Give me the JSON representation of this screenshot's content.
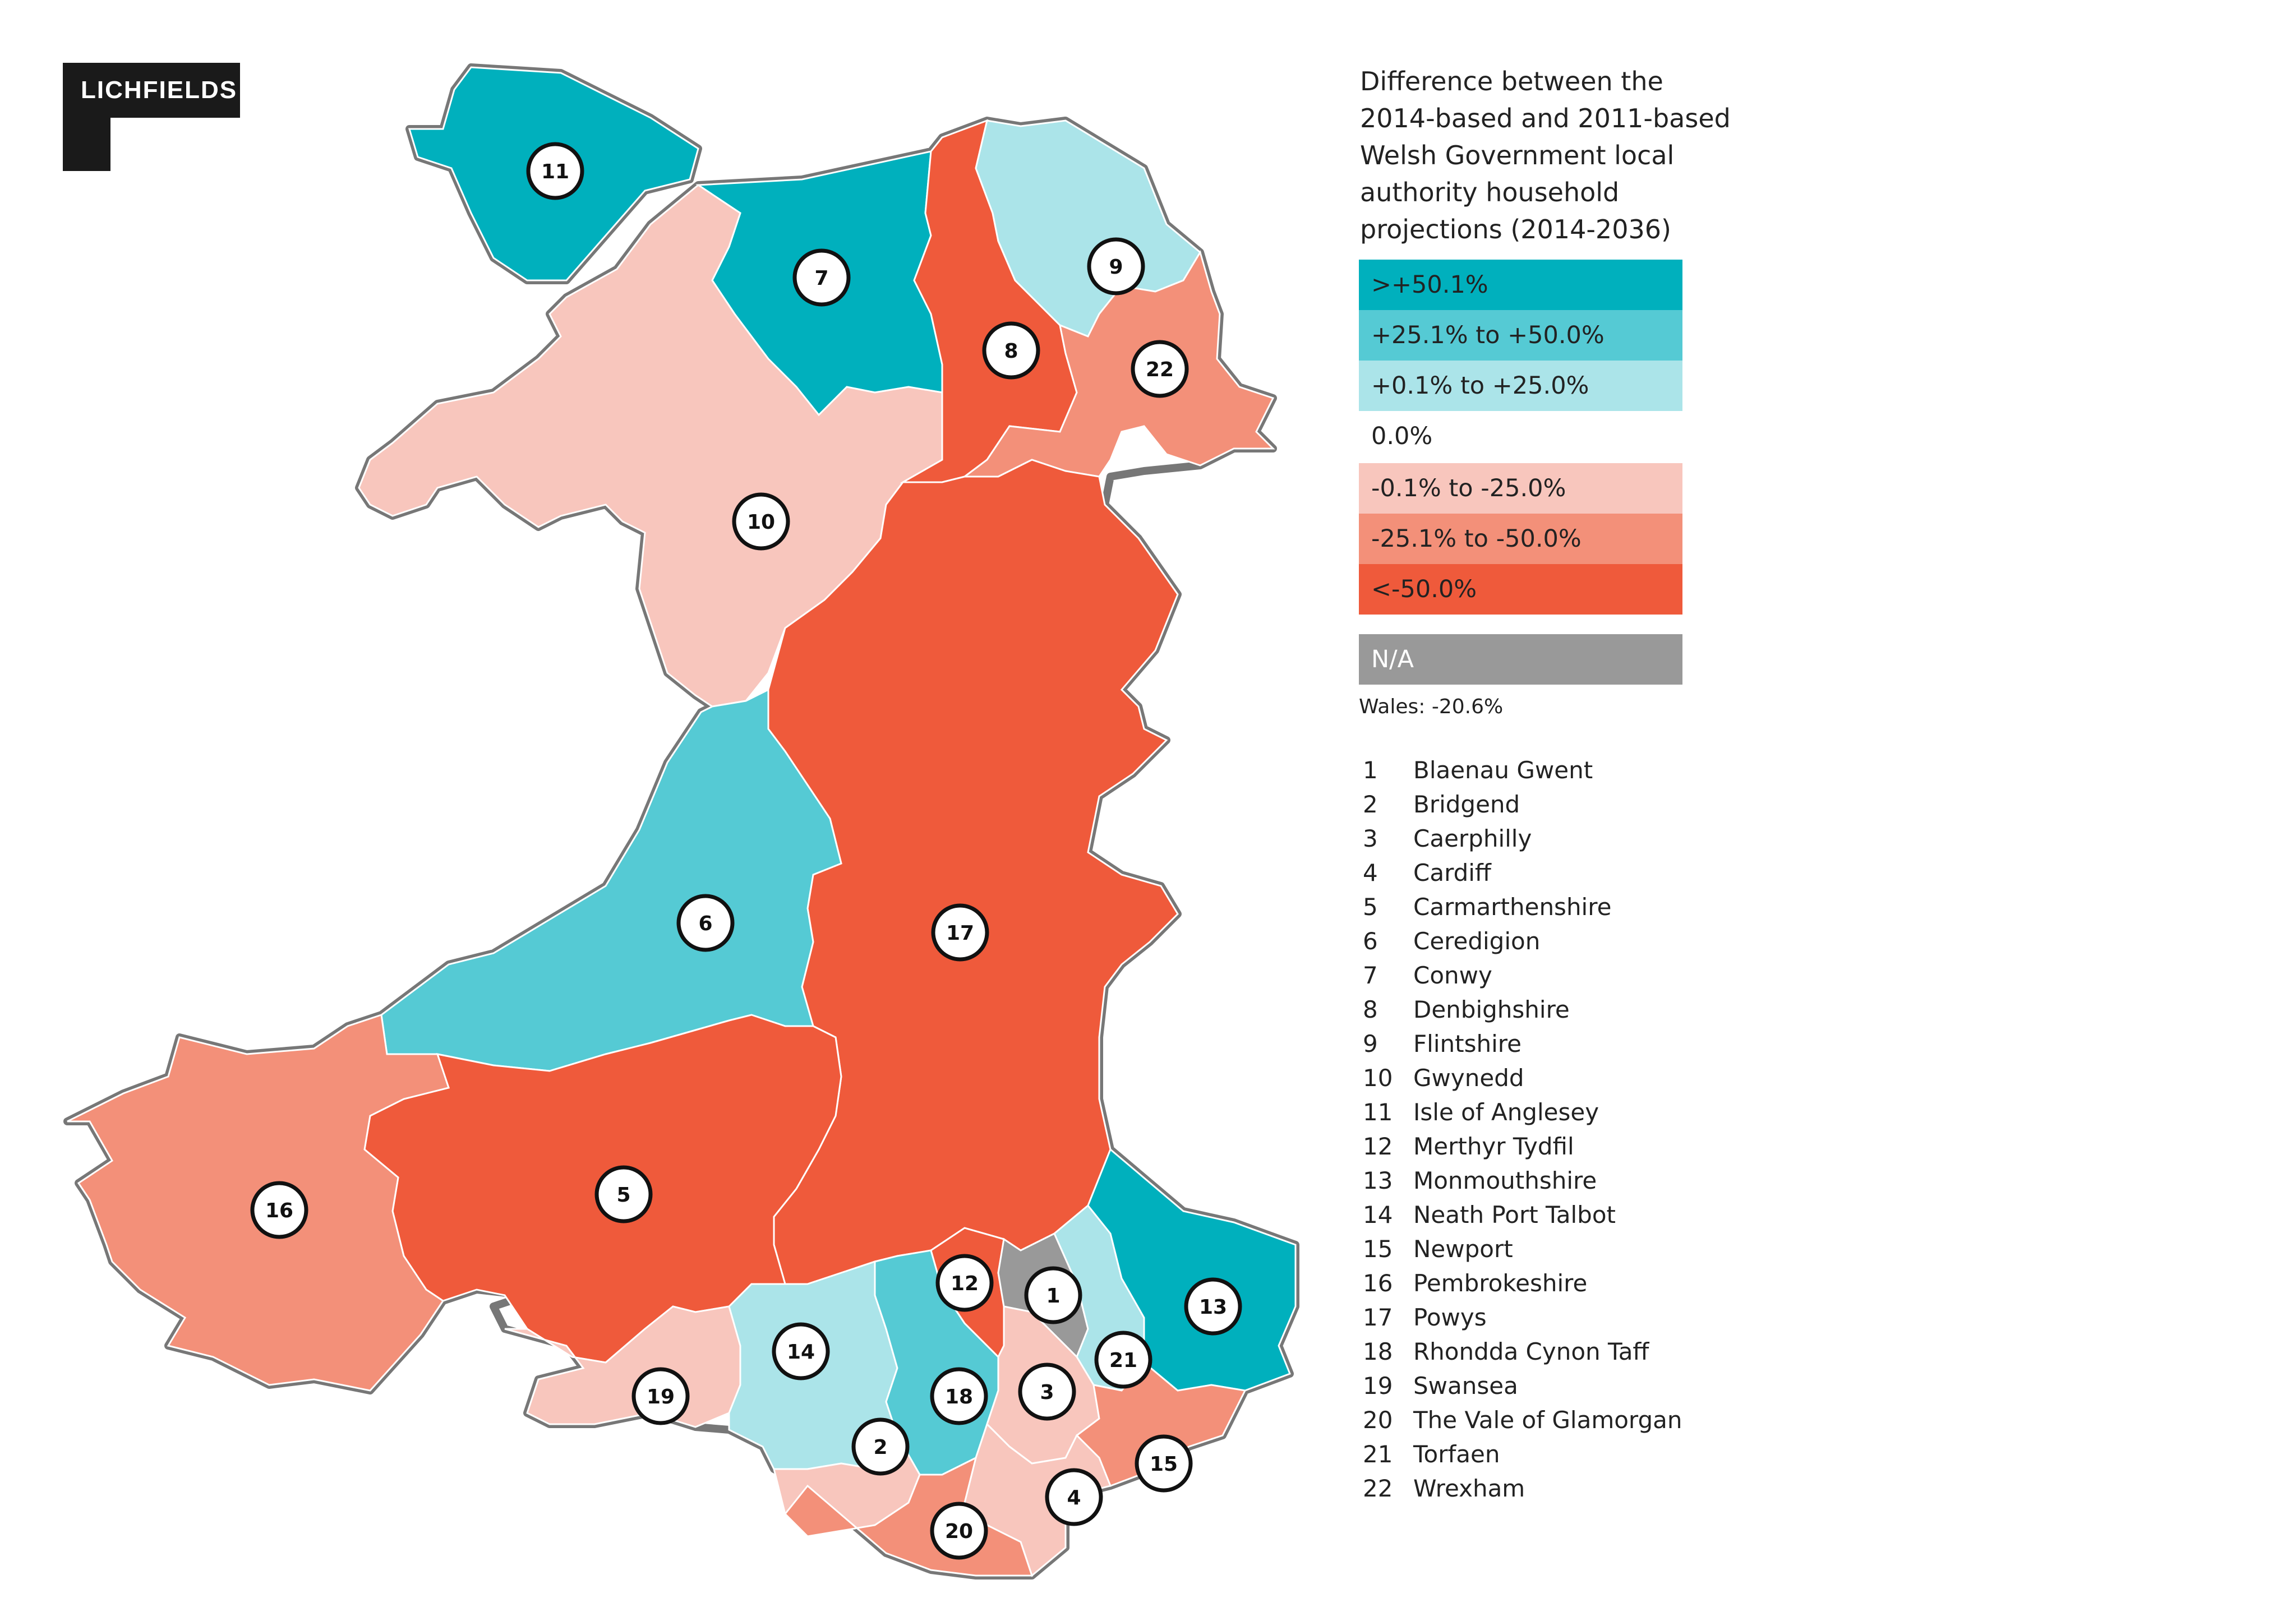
{
  "logo": {
    "text": "LICHFIELDS"
  },
  "legend": {
    "title_lines": [
      "Difference between the",
      "2014-based and 2011-based",
      "Welsh Government local",
      "authority household",
      "projections (2014-2036)"
    ],
    "classes": [
      {
        "label": ">+50.1%",
        "color": "#00b0bd"
      },
      {
        "label": "+25.1% to +50.0%",
        "color": "#55cad4"
      },
      {
        "label": "+0.1% to +25.0%",
        "color": "#abe4e9"
      },
      {
        "label": "0.0%",
        "color": "#ffffff"
      },
      {
        "label": "-0.1% to -25.0%",
        "color": "#f8c6bd"
      },
      {
        "label": "-25.1% to -50.0%",
        "color": "#f39079"
      },
      {
        "label": "<-50.0%",
        "color": "#ef5a3b"
      }
    ],
    "na": {
      "label": "N/A",
      "color": "#999999"
    },
    "wales_total": "Wales: -20.6%"
  },
  "authorities": [
    {
      "num": "1",
      "name": "Blaenau Gwent",
      "class": "N/A"
    },
    {
      "num": "2",
      "name": "Bridgend",
      "class": "-0.1% to -25.0%"
    },
    {
      "num": "3",
      "name": "Caerphilly",
      "class": "-0.1% to -25.0%"
    },
    {
      "num": "4",
      "name": "Cardiff",
      "class": "-0.1% to -25.0%"
    },
    {
      "num": "5",
      "name": "Carmarthenshire",
      "class": "<-50.0%"
    },
    {
      "num": "6",
      "name": "Ceredigion",
      "class": "+25.1% to +50.0%"
    },
    {
      "num": "7",
      "name": "Conwy",
      "class": ">+50.1%"
    },
    {
      "num": "8",
      "name": "Denbighshire",
      "class": "<-50.0%"
    },
    {
      "num": "9",
      "name": "Flintshire",
      "class": "+0.1% to +25.0%"
    },
    {
      "num": "10",
      "name": "Gwynedd",
      "class": "-0.1% to -25.0%"
    },
    {
      "num": "11",
      "name": "Isle of Anglesey",
      "class": ">+50.1%"
    },
    {
      "num": "12",
      "name": "Merthyr Tydfil",
      "class": "<-50.0%"
    },
    {
      "num": "13",
      "name": "Monmouthshire",
      "class": ">+50.1%"
    },
    {
      "num": "14",
      "name": "Neath Port Talbot",
      "class": "+0.1% to +25.0%"
    },
    {
      "num": "15",
      "name": "Newport",
      "class": "-25.1% to -50.0%"
    },
    {
      "num": "16",
      "name": "Pembrokeshire",
      "class": "-25.1% to -50.0%"
    },
    {
      "num": "17",
      "name": "Powys",
      "class": "<-50.0%"
    },
    {
      "num": "18",
      "name": "Rhondda Cynon Taff",
      "class": "+25.1% to +50.0%"
    },
    {
      "num": "19",
      "name": "Swansea",
      "class": "-0.1% to -25.0%"
    },
    {
      "num": "20",
      "name": "The Vale of Glamorgan",
      "class": "-25.1% to -50.0%"
    },
    {
      "num": "21",
      "name": "Torfaen",
      "class": "+0.1% to +25.0%"
    },
    {
      "num": "22",
      "name": "Wrexham",
      "class": "-25.1% to -50.0%"
    }
  ]
}
